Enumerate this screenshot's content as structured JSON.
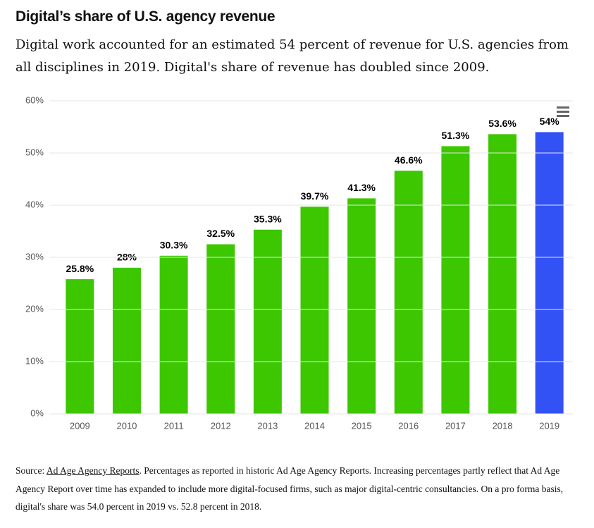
{
  "chart_data": {
    "type": "bar",
    "title": "Digital’s share of U.S. agency revenue",
    "subtitle": "Digital work accounted for an estimated 54 percent of revenue for U.S. agencies from all disciplines in 2019. Digital's share of revenue has doubled since 2009.",
    "categories": [
      "2009",
      "2010",
      "2011",
      "2012",
      "2013",
      "2014",
      "2015",
      "2016",
      "2017",
      "2018",
      "2019"
    ],
    "values": [
      25.8,
      28,
      30.3,
      32.5,
      35.3,
      39.7,
      41.3,
      46.6,
      51.3,
      53.6,
      54
    ],
    "value_labels": [
      "25.8%",
      "28%",
      "30.3%",
      "32.5%",
      "35.3%",
      "39.7%",
      "41.3%",
      "46.6%",
      "51.3%",
      "53.6%",
      "54%"
    ],
    "colors": [
      "#3cc700",
      "#3cc700",
      "#3cc700",
      "#3cc700",
      "#3cc700",
      "#3cc700",
      "#3cc700",
      "#3cc700",
      "#3cc700",
      "#3cc700",
      "#3352f5"
    ],
    "ylim": [
      0,
      60
    ],
    "yticks": [
      {
        "value": 0,
        "label": "0%"
      },
      {
        "value": 10,
        "label": "10%"
      },
      {
        "value": 20,
        "label": "20%"
      },
      {
        "value": 30,
        "label": "30%"
      },
      {
        "value": 40,
        "label": "40%"
      },
      {
        "value": 50,
        "label": "50%"
      },
      {
        "value": 60,
        "label": "60%"
      }
    ],
    "grid": true,
    "source": {
      "prefix": "Source:",
      "link": "Ad Age Agency Reports",
      "text": ". Percentages as reported in historic Ad Age Agency Reports. Increasing percentages partly reflect that Ad Age Agency Report over time has expanded to include more digital-focused firms, such as major digital-centric consultancies. On a pro forma basis, digital's share was 54.0 percent in 2019 vs. 52.8 percent in 2018."
    }
  }
}
